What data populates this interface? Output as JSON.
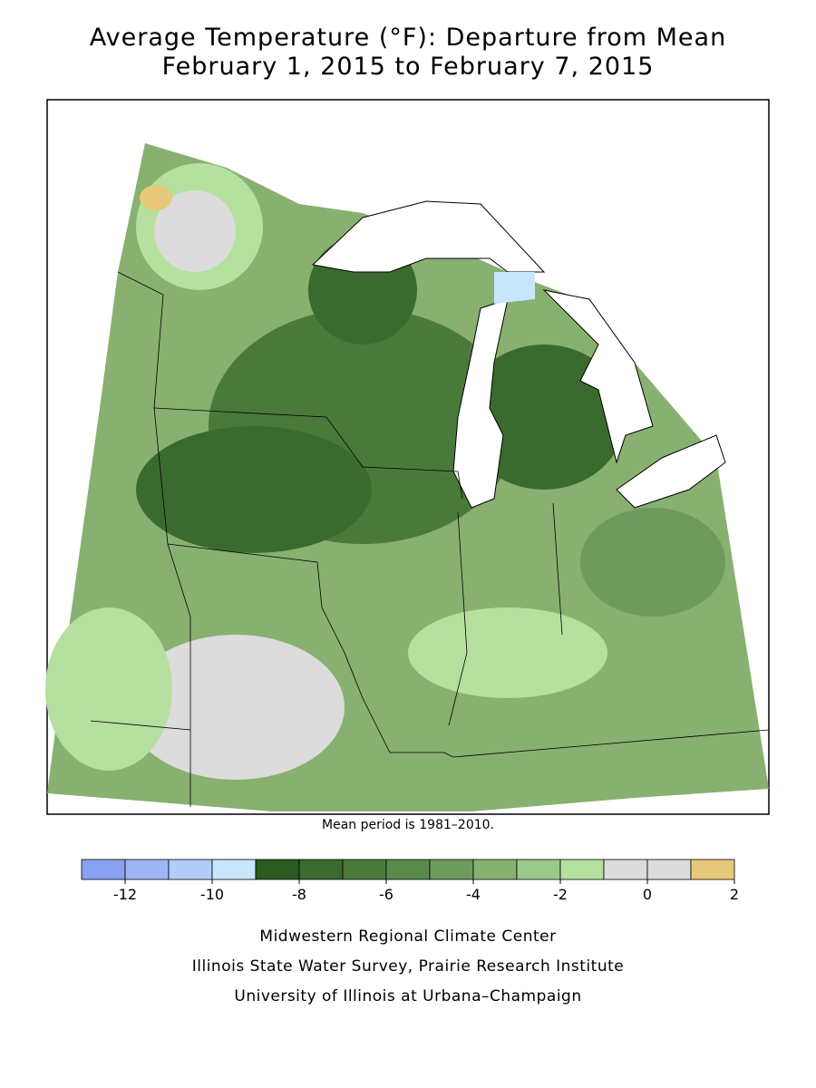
{
  "header": {
    "title": "Average Temperature (°F): Departure from Mean",
    "subtitle": "February 1, 2015 to February 7, 2015"
  },
  "note": "Mean period is 1981–2010.",
  "legend": {
    "bins": [
      -13,
      -12,
      -11,
      -10,
      -9,
      -8,
      -7,
      -6,
      -5,
      -4,
      -3,
      -2,
      -1,
      0,
      1,
      2
    ],
    "colors": [
      "#8aa0f0",
      "#9fb5f5",
      "#b3cdf8",
      "#c8e6fb",
      "#2a5a1e",
      "#3a6b2e",
      "#4a7a3a",
      "#5a8a4a",
      "#6f9a5e",
      "#88b070",
      "#9cc88a",
      "#b5e0a0",
      "#dcdcdc",
      "#dcdcdc",
      "#e8c87a"
    ],
    "ticks": [
      -12,
      -10,
      -8,
      -6,
      -4,
      -2,
      0,
      2
    ]
  },
  "credits": [
    "Midwestern Regional Climate Center",
    "Illinois State Water Survey, Prairie Research Institute",
    "University of Illinois at Urbana–Champaign"
  ]
}
